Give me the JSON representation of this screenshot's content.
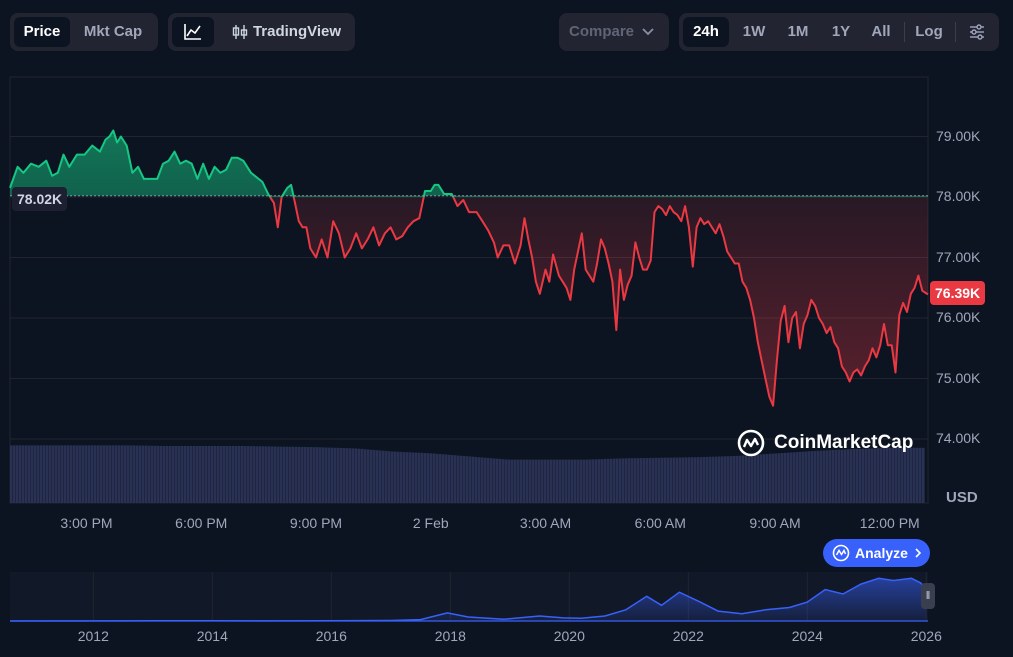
{
  "toolbar": {
    "metric_tabs": [
      "Price",
      "Mkt Cap"
    ],
    "active_metric": "Price",
    "tradingview_label": "TradingView",
    "compare_label": "Compare",
    "range_tabs": [
      "24h",
      "1W",
      "1M",
      "1Y",
      "All"
    ],
    "active_range": "24h",
    "log_label": "Log"
  },
  "watermark": "CoinMarketCap",
  "analyze_label": "Analyze",
  "currency_label": "USD",
  "colors": {
    "up": "#16c784",
    "down": "#ea3943",
    "brush": "#3861fb",
    "background": "#0d1421"
  },
  "chart_data": [
    {
      "type": "line",
      "title": "",
      "reference_price": 78.02,
      "reference_label": "78.02K",
      "current_price": 76.39,
      "current_label": "76.39K",
      "ylim": [
        73.0,
        80.0
      ],
      "yticks": [
        74,
        75,
        76,
        77,
        78,
        79
      ],
      "ytick_labels": [
        "74.00K",
        "75.00K",
        "76.00K",
        "77.00K",
        "78.00K",
        "79.00K"
      ],
      "xticks": [
        2,
        5,
        8,
        11,
        14,
        17,
        20,
        23
      ],
      "xtick_labels": [
        "3:00 PM",
        "6:00 PM",
        "9:00 PM",
        "2 Feb",
        "3:00 AM",
        "6:00 AM",
        "9:00 AM",
        "12:00 PM"
      ],
      "xlim": [
        0,
        24
      ],
      "points": [
        [
          0.0,
          78.15
        ],
        [
          0.2,
          78.5
        ],
        [
          0.35,
          78.4
        ],
        [
          0.55,
          78.55
        ],
        [
          0.75,
          78.5
        ],
        [
          0.95,
          78.6
        ],
        [
          1.1,
          78.35
        ],
        [
          1.25,
          78.4
        ],
        [
          1.4,
          78.7
        ],
        [
          1.55,
          78.5
        ],
        [
          1.75,
          78.7
        ],
        [
          1.95,
          78.7
        ],
        [
          2.15,
          78.85
        ],
        [
          2.35,
          78.75
        ],
        [
          2.5,
          78.95
        ],
        [
          2.6,
          79.0
        ],
        [
          2.7,
          79.1
        ],
        [
          2.8,
          78.9
        ],
        [
          2.9,
          79.0
        ],
        [
          3.05,
          78.85
        ],
        [
          3.2,
          78.4
        ],
        [
          3.35,
          78.5
        ],
        [
          3.5,
          78.3
        ],
        [
          3.65,
          78.3
        ],
        [
          3.85,
          78.3
        ],
        [
          4.0,
          78.55
        ],
        [
          4.15,
          78.6
        ],
        [
          4.3,
          78.75
        ],
        [
          4.45,
          78.55
        ],
        [
          4.6,
          78.6
        ],
        [
          4.75,
          78.55
        ],
        [
          4.9,
          78.3
        ],
        [
          5.05,
          78.55
        ],
        [
          5.2,
          78.3
        ],
        [
          5.35,
          78.5
        ],
        [
          5.5,
          78.4
        ],
        [
          5.65,
          78.45
        ],
        [
          5.8,
          78.65
        ],
        [
          5.95,
          78.65
        ],
        [
          6.1,
          78.6
        ],
        [
          6.3,
          78.4
        ],
        [
          6.5,
          78.3
        ],
        [
          6.6,
          78.25
        ],
        [
          6.75,
          78.05
        ],
        [
          6.9,
          77.9
        ],
        [
          7.0,
          77.5
        ],
        [
          7.1,
          78.0
        ],
        [
          7.25,
          78.15
        ],
        [
          7.35,
          78.2
        ],
        [
          7.45,
          77.9
        ],
        [
          7.55,
          77.6
        ],
        [
          7.65,
          77.5
        ],
        [
          7.75,
          77.5
        ],
        [
          7.85,
          77.15
        ],
        [
          8.0,
          77.0
        ],
        [
          8.15,
          77.3
        ],
        [
          8.3,
          77.0
        ],
        [
          8.45,
          77.6
        ],
        [
          8.6,
          77.4
        ],
        [
          8.75,
          77.0
        ],
        [
          8.9,
          77.15
        ],
        [
          9.05,
          77.4
        ],
        [
          9.2,
          77.15
        ],
        [
          9.35,
          77.3
        ],
        [
          9.5,
          77.5
        ],
        [
          9.65,
          77.2
        ],
        [
          9.8,
          77.4
        ],
        [
          9.95,
          77.5
        ],
        [
          10.1,
          77.3
        ],
        [
          10.25,
          77.35
        ],
        [
          10.4,
          77.5
        ],
        [
          10.55,
          77.6
        ],
        [
          10.7,
          77.65
        ],
        [
          10.85,
          78.1
        ],
        [
          11.0,
          78.1
        ],
        [
          11.1,
          78.2
        ],
        [
          11.2,
          78.2
        ],
        [
          11.35,
          78.05
        ],
        [
          11.55,
          78.05
        ],
        [
          11.7,
          77.85
        ],
        [
          11.85,
          77.95
        ],
        [
          12.0,
          77.75
        ],
        [
          12.2,
          77.75
        ],
        [
          12.35,
          77.6
        ],
        [
          12.5,
          77.45
        ],
        [
          12.65,
          77.25
        ],
        [
          12.75,
          77.0
        ],
        [
          12.9,
          77.2
        ],
        [
          13.05,
          77.2
        ],
        [
          13.2,
          76.9
        ],
        [
          13.35,
          77.2
        ],
        [
          13.45,
          77.65
        ],
        [
          13.55,
          77.3
        ],
        [
          13.65,
          77.0
        ],
        [
          13.75,
          76.6
        ],
        [
          13.85,
          76.4
        ],
        [
          14.0,
          76.8
        ],
        [
          14.1,
          76.6
        ],
        [
          14.2,
          77.05
        ],
        [
          14.35,
          76.7
        ],
        [
          14.45,
          76.6
        ],
        [
          14.55,
          76.5
        ],
        [
          14.65,
          76.3
        ],
        [
          14.75,
          76.8
        ],
        [
          14.85,
          77.1
        ],
        [
          14.95,
          77.4
        ],
        [
          15.05,
          76.8
        ],
        [
          15.15,
          76.7
        ],
        [
          15.25,
          76.6
        ],
        [
          15.35,
          76.9
        ],
        [
          15.45,
          77.3
        ],
        [
          15.55,
          77.15
        ],
        [
          15.65,
          76.9
        ],
        [
          15.75,
          76.6
        ],
        [
          15.85,
          75.8
        ],
        [
          15.95,
          76.8
        ],
        [
          16.05,
          76.3
        ],
        [
          16.15,
          76.55
        ],
        [
          16.25,
          76.7
        ],
        [
          16.35,
          77.25
        ],
        [
          16.45,
          77.0
        ],
        [
          16.55,
          76.8
        ],
        [
          16.65,
          76.8
        ],
        [
          16.75,
          76.95
        ],
        [
          16.85,
          77.75
        ],
        [
          16.95,
          77.85
        ],
        [
          17.05,
          77.8
        ],
        [
          17.15,
          77.7
        ],
        [
          17.25,
          77.85
        ],
        [
          17.35,
          77.75
        ],
        [
          17.45,
          77.7
        ],
        [
          17.55,
          77.6
        ],
        [
          17.65,
          77.85
        ],
        [
          17.75,
          77.5
        ],
        [
          17.85,
          76.85
        ],
        [
          17.95,
          77.5
        ],
        [
          18.05,
          77.65
        ],
        [
          18.15,
          77.55
        ],
        [
          18.25,
          77.6
        ],
        [
          18.35,
          77.5
        ],
        [
          18.45,
          77.4
        ],
        [
          18.55,
          77.55
        ],
        [
          18.65,
          77.35
        ],
        [
          18.75,
          77.1
        ],
        [
          18.85,
          77.0
        ],
        [
          18.95,
          76.9
        ],
        [
          19.05,
          76.9
        ],
        [
          19.15,
          76.6
        ],
        [
          19.25,
          76.5
        ],
        [
          19.35,
          76.3
        ],
        [
          19.45,
          76.0
        ],
        [
          19.55,
          75.6
        ],
        [
          19.65,
          75.3
        ],
        [
          19.75,
          75.0
        ],
        [
          19.85,
          74.7
        ],
        [
          19.95,
          74.55
        ],
        [
          20.05,
          75.3
        ],
        [
          20.15,
          75.95
        ],
        [
          20.25,
          76.2
        ],
        [
          20.35,
          75.6
        ],
        [
          20.45,
          76.0
        ],
        [
          20.55,
          76.1
        ],
        [
          20.65,
          75.5
        ],
        [
          20.75,
          75.9
        ],
        [
          20.85,
          76.05
        ],
        [
          20.95,
          76.3
        ],
        [
          21.05,
          76.2
        ],
        [
          21.15,
          76.0
        ],
        [
          21.25,
          75.9
        ],
        [
          21.35,
          75.75
        ],
        [
          21.45,
          75.85
        ],
        [
          21.55,
          75.6
        ],
        [
          21.65,
          75.5
        ],
        [
          21.75,
          75.2
        ],
        [
          21.85,
          75.1
        ],
        [
          21.95,
          74.95
        ],
        [
          22.05,
          75.1
        ],
        [
          22.15,
          75.15
        ],
        [
          22.25,
          75.05
        ],
        [
          22.35,
          75.2
        ],
        [
          22.45,
          75.3
        ],
        [
          22.55,
          75.5
        ],
        [
          22.65,
          75.35
        ],
        [
          22.75,
          75.55
        ],
        [
          22.85,
          75.9
        ],
        [
          22.95,
          75.55
        ],
        [
          23.05,
          75.55
        ],
        [
          23.15,
          75.1
        ],
        [
          23.25,
          76.05
        ],
        [
          23.35,
          76.25
        ],
        [
          23.45,
          76.1
        ],
        [
          23.55,
          76.4
        ],
        [
          23.65,
          76.5
        ],
        [
          23.75,
          76.7
        ],
        [
          23.85,
          76.45
        ],
        [
          24.0,
          76.39
        ]
      ],
      "volume": [
        [
          0,
          0.93
        ],
        [
          1,
          0.93
        ],
        [
          2,
          0.93
        ],
        [
          3,
          0.93
        ],
        [
          4,
          0.92
        ],
        [
          5,
          0.92
        ],
        [
          6,
          0.92
        ],
        [
          7,
          0.91
        ],
        [
          8,
          0.9
        ],
        [
          9,
          0.88
        ],
        [
          10,
          0.83
        ],
        [
          11,
          0.8
        ],
        [
          12,
          0.75
        ],
        [
          13,
          0.7
        ],
        [
          14,
          0.7
        ],
        [
          15,
          0.7
        ],
        [
          16,
          0.72
        ],
        [
          17,
          0.73
        ],
        [
          18,
          0.74
        ],
        [
          19,
          0.76
        ],
        [
          20,
          0.8
        ],
        [
          21,
          0.84
        ],
        [
          22,
          0.87
        ],
        [
          23,
          0.89
        ],
        [
          24,
          0.89
        ]
      ]
    },
    {
      "type": "area",
      "title": "",
      "xlim": [
        2010.6,
        2026.1
      ],
      "xticks": [
        2012,
        2014,
        2016,
        2018,
        2020,
        2022,
        2024,
        2026
      ],
      "xtick_labels": [
        "2012",
        "2014",
        "2016",
        "2018",
        "2020",
        "2022",
        "2024",
        "2026"
      ],
      "points": [
        [
          2010.6,
          0.0
        ],
        [
          2013.0,
          0.005
        ],
        [
          2014.0,
          0.005
        ],
        [
          2015.0,
          0.003
        ],
        [
          2016.0,
          0.004
        ],
        [
          2017.0,
          0.01
        ],
        [
          2017.5,
          0.03
        ],
        [
          2017.95,
          0.18
        ],
        [
          2018.3,
          0.09
        ],
        [
          2018.9,
          0.04
        ],
        [
          2019.5,
          0.11
        ],
        [
          2019.9,
          0.07
        ],
        [
          2020.2,
          0.06
        ],
        [
          2020.6,
          0.11
        ],
        [
          2020.95,
          0.25
        ],
        [
          2021.3,
          0.55
        ],
        [
          2021.55,
          0.35
        ],
        [
          2021.85,
          0.64
        ],
        [
          2022.2,
          0.42
        ],
        [
          2022.5,
          0.22
        ],
        [
          2022.9,
          0.16
        ],
        [
          2023.3,
          0.25
        ],
        [
          2023.7,
          0.3
        ],
        [
          2024.0,
          0.42
        ],
        [
          2024.3,
          0.7
        ],
        [
          2024.6,
          0.6
        ],
        [
          2024.9,
          0.82
        ],
        [
          2025.2,
          0.95
        ],
        [
          2025.45,
          0.9
        ],
        [
          2025.75,
          0.95
        ],
        [
          2025.9,
          0.85
        ],
        [
          2026.0,
          0.72
        ]
      ]
    }
  ]
}
